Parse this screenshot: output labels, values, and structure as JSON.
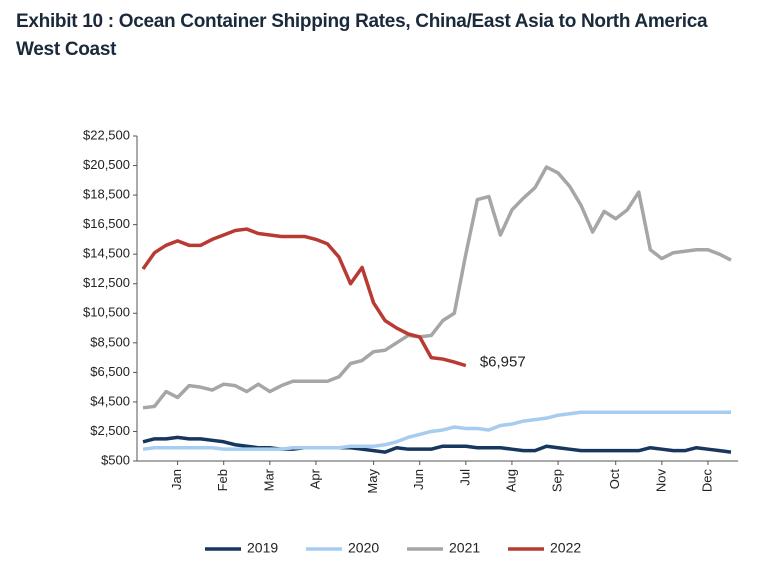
{
  "chart_data": {
    "type": "line",
    "title": "Exhibit 10 : Ocean Container Shipping Rates, China/East Asia to North America West Coast",
    "categories": [
      null,
      null,
      null,
      "Jan",
      null,
      null,
      null,
      "Feb",
      null,
      null,
      null,
      "Mar",
      null,
      null,
      null,
      "Apr",
      null,
      null,
      null,
      null,
      "May",
      null,
      null,
      null,
      "Jun",
      null,
      null,
      null,
      "Jul",
      null,
      null,
      null,
      "Aug",
      null,
      null,
      null,
      "Sep",
      null,
      null,
      null,
      null,
      "Oct",
      null,
      null,
      null,
      "Nov",
      null,
      null,
      null,
      "Dec",
      null,
      null
    ],
    "ylim": [
      500,
      22500
    ],
    "yticks": [
      {
        "value": 500,
        "label": "$500"
      },
      {
        "value": 2500,
        "label": "$2,500"
      },
      {
        "value": 4500,
        "label": "$4,500"
      },
      {
        "value": 6500,
        "label": "$6,500"
      },
      {
        "value": 8500,
        "label": "$8,500"
      },
      {
        "value": 10500,
        "label": "$10,500"
      },
      {
        "value": 12500,
        "label": "$12,500"
      },
      {
        "value": 14500,
        "label": "$14,500"
      },
      {
        "value": 16500,
        "label": "$16,500"
      },
      {
        "value": 18500,
        "label": "$18,500"
      },
      {
        "value": 20500,
        "label": "$20,500"
      },
      {
        "value": 22500,
        "label": "$22,500"
      }
    ],
    "grid": false,
    "legend": "bottom",
    "series": [
      {
        "name": "2019",
        "color": "#17375e",
        "values": [
          1800,
          2000,
          2000,
          2100,
          2000,
          2000,
          1900,
          1800,
          1600,
          1500,
          1400,
          1400,
          1300,
          1300,
          1400,
          1400,
          1400,
          1400,
          1400,
          1300,
          1200,
          1100,
          1400,
          1300,
          1300,
          1300,
          1500,
          1500,
          1500,
          1400,
          1400,
          1400,
          1300,
          1200,
          1200,
          1500,
          1400,
          1300,
          1200,
          1200,
          1200,
          1200,
          1200,
          1200,
          1400,
          1300,
          1200,
          1200,
          1400,
          1300,
          1200,
          1100
        ]
      },
      {
        "name": "2020",
        "color": "#a6cdf0",
        "values": [
          1300,
          1400,
          1400,
          1400,
          1400,
          1400,
          1400,
          1300,
          1300,
          1300,
          1300,
          1300,
          1300,
          1400,
          1400,
          1400,
          1400,
          1400,
          1500,
          1500,
          1500,
          1600,
          1800,
          2100,
          2300,
          2500,
          2600,
          2800,
          2700,
          2700,
          2600,
          2900,
          3000,
          3200,
          3300,
          3400,
          3600,
          3700,
          3800,
          3800,
          3800,
          3800,
          3800,
          3800,
          3800,
          3800,
          3800,
          3800,
          3800,
          3800,
          3800,
          3800
        ]
      },
      {
        "name": "2021",
        "color": "#a6a6a6",
        "values": [
          4100,
          4200,
          5200,
          4800,
          5600,
          5500,
          5300,
          5700,
          5600,
          5200,
          5700,
          5200,
          5600,
          5900,
          5900,
          5900,
          5900,
          6200,
          7100,
          7300,
          7900,
          8000,
          8500,
          9000,
          8900,
          9000,
          10000,
          10500,
          14500,
          18200,
          18400,
          15800,
          17500,
          18300,
          19000,
          20400,
          20000,
          19100,
          17800,
          16000,
          17400,
          16900,
          17500,
          18700,
          14800,
          14200,
          14600,
          14700,
          14800,
          14800,
          14500,
          14100
        ]
      },
      {
        "name": "2022",
        "color": "#b83a32",
        "values": [
          13500,
          14600,
          15100,
          15400,
          15100,
          15100,
          15500,
          15800,
          16100,
          16200,
          15900,
          15800,
          15700,
          15700,
          15700,
          15500,
          15200,
          14300,
          12500,
          13600,
          11200,
          10000,
          9500,
          9100,
          8900,
          7500,
          7400,
          7200,
          6957,
          null,
          null,
          null,
          null,
          null,
          null,
          null,
          null,
          null,
          null,
          null,
          null,
          null,
          null,
          null,
          null,
          null,
          null,
          null,
          null,
          null,
          null,
          null
        ],
        "value_labels": [
          null,
          null,
          null,
          null,
          null,
          null,
          null,
          null,
          null,
          null,
          null,
          null,
          null,
          null,
          null,
          null,
          null,
          null,
          null,
          null,
          null,
          null,
          null,
          null,
          null,
          null,
          null,
          null,
          "$6,957",
          null,
          null,
          null,
          null,
          null,
          null,
          null,
          null,
          null,
          null,
          null,
          null,
          null,
          null,
          null,
          null,
          null,
          null,
          null,
          null,
          null,
          null,
          null
        ]
      }
    ]
  }
}
